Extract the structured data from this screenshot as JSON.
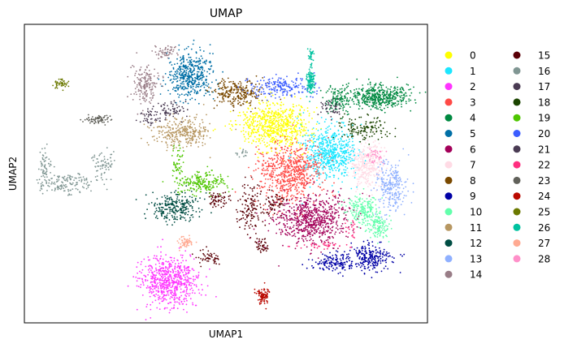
{
  "chart_data": {
    "type": "scatter",
    "title": "UMAP",
    "xlabel": "UMAP1",
    "ylabel": "UMAP2",
    "xticks": [],
    "yticks": [],
    "grid": false,
    "legend": {
      "placement": "right-outside",
      "columns": 2,
      "entries": [
        "0",
        "1",
        "2",
        "3",
        "4",
        "5",
        "6",
        "7",
        "8",
        "9",
        "10",
        "11",
        "12",
        "13",
        "14",
        "15",
        "16",
        "17",
        "18",
        "19",
        "20",
        "21",
        "22",
        "23",
        "24",
        "25",
        "26",
        "27",
        "28"
      ]
    },
    "xlim": [
      0,
      100
    ],
    "ylim": [
      0,
      100
    ],
    "series": [
      {
        "name": "0",
        "color": "#ffff00",
        "clusters": [
          {
            "x": 62,
            "y": 66,
            "sx": 4.5,
            "sy": 3.8,
            "n": 700
          }
        ]
      },
      {
        "name": "1",
        "color": "#1ce6ff",
        "clusters": [
          {
            "x": 76,
            "y": 57,
            "sx": 3.2,
            "sy": 4.5,
            "n": 600
          }
        ]
      },
      {
        "name": "2",
        "color": "#ff34ff",
        "clusters": [
          {
            "x": 36,
            "y": 14,
            "sx": 3.4,
            "sy": 4.3,
            "n": 650
          }
        ]
      },
      {
        "name": "3",
        "color": "#ff4a46",
        "clusters": [
          {
            "x": 66,
            "y": 50,
            "sx": 3.8,
            "sy": 4.6,
            "n": 650
          }
        ]
      },
      {
        "name": "4",
        "color": "#008941",
        "clusters": [
          {
            "x": 88,
            "y": 76,
            "sx": 3.5,
            "sy": 2.0,
            "n": 450
          },
          {
            "x": 78,
            "y": 75,
            "sx": 1.6,
            "sy": 2.2,
            "n": 120
          }
        ]
      },
      {
        "name": "5",
        "color": "#006fa6",
        "clusters": [
          {
            "x": 41,
            "y": 83,
            "sx": 2.8,
            "sy": 3.8,
            "n": 450
          }
        ]
      },
      {
        "name": "6",
        "color": "#a30059",
        "clusters": [
          {
            "x": 71,
            "y": 35,
            "sx": 4.8,
            "sy": 4.2,
            "n": 700
          }
        ]
      },
      {
        "name": "7",
        "color": "#ffdbe5",
        "clusters": [
          {
            "x": 85,
            "y": 53,
            "sx": 2.0,
            "sy": 3.6,
            "n": 300
          }
        ]
      },
      {
        "name": "8",
        "color": "#7a4900",
        "clusters": [
          {
            "x": 53,
            "y": 77,
            "sx": 3.2,
            "sy": 2.5,
            "n": 250
          }
        ]
      },
      {
        "name": "9",
        "color": "#0000a6",
        "clusters": [
          {
            "x": 86,
            "y": 22,
            "sx": 2.6,
            "sy": 2.5,
            "n": 230
          },
          {
            "x": 77,
            "y": 20,
            "sx": 3.0,
            "sy": 1.6,
            "n": 150
          }
        ]
      },
      {
        "name": "10",
        "color": "#63ffac",
        "clusters": [
          {
            "x": 84,
            "y": 38,
            "sx": 1.8,
            "sy": 2.5,
            "n": 200
          },
          {
            "x": 88,
            "y": 32,
            "sx": 1.4,
            "sy": 2.2,
            "n": 120
          }
        ]
      },
      {
        "name": "11",
        "color": "#b79762",
        "clusters": [
          {
            "x": 39,
            "y": 64,
            "sx": 3.6,
            "sy": 2.6,
            "n": 300
          }
        ]
      },
      {
        "name": "12",
        "color": "#004d43",
        "clusters": [
          {
            "x": 37,
            "y": 39,
            "sx": 3.0,
            "sy": 2.5,
            "n": 250
          }
        ]
      },
      {
        "name": "13",
        "color": "#8fb0ff",
        "clusters": [
          {
            "x": 91,
            "y": 46,
            "sx": 1.8,
            "sy": 4.0,
            "n": 250
          }
        ]
      },
      {
        "name": "14",
        "color": "#997d87",
        "clusters": [
          {
            "x": 30,
            "y": 80,
            "sx": 1.8,
            "sy": 3.4,
            "n": 170
          },
          {
            "x": 35,
            "y": 91,
            "sx": 1.5,
            "sy": 1.2,
            "n": 50
          }
        ]
      },
      {
        "name": "15",
        "color": "#5a0007",
        "clusters": [
          {
            "x": 48,
            "y": 41,
            "sx": 1.5,
            "sy": 1.5,
            "n": 60
          },
          {
            "x": 56,
            "y": 38,
            "sx": 1.6,
            "sy": 4.0,
            "n": 130
          },
          {
            "x": 62,
            "y": 40,
            "sx": 1.4,
            "sy": 2.0,
            "n": 60
          },
          {
            "x": 46,
            "y": 22,
            "sx": 1.5,
            "sy": 1.3,
            "n": 50
          },
          {
            "x": 59,
            "y": 26,
            "sx": 1.0,
            "sy": 1.2,
            "n": 40
          }
        ]
      },
      {
        "name": "16",
        "color": "#809693",
        "clusters": [
          {
            "x": 11,
            "y": 47,
            "sx": 3.5,
            "sy": 1.6,
            "n": 150
          },
          {
            "x": 20,
            "y": 53,
            "sx": 1.6,
            "sy": 2.2,
            "n": 60
          },
          {
            "x": 5,
            "y": 52,
            "sx": 0.8,
            "sy": 3.2,
            "n": 60
          },
          {
            "x": 54,
            "y": 57,
            "sx": 1.0,
            "sy": 0.7,
            "n": 15
          }
        ]
      },
      {
        "name": "17",
        "color": "#4a3b53",
        "clusters": [
          {
            "x": 36,
            "y": 71,
            "sx": 2.0,
            "sy": 1.5,
            "n": 70
          },
          {
            "x": 31,
            "y": 70,
            "sx": 1.0,
            "sy": 1.2,
            "n": 20
          },
          {
            "x": 76,
            "y": 72,
            "sx": 1.5,
            "sy": 1.6,
            "n": 50
          }
        ]
      },
      {
        "name": "18",
        "color": "#1b4400",
        "clusters": [
          {
            "x": 84,
            "y": 65,
            "sx": 3.4,
            "sy": 2.0,
            "n": 130
          }
        ]
      },
      {
        "name": "19",
        "color": "#4fc601",
        "clusters": [
          {
            "x": 44,
            "y": 47,
            "sx": 3.0,
            "sy": 2.0,
            "n": 200
          },
          {
            "x": 38,
            "y": 53,
            "sx": 0.8,
            "sy": 2.5,
            "n": 50
          }
        ]
      },
      {
        "name": "20",
        "color": "#3b5dff",
        "clusters": [
          {
            "x": 64,
            "y": 79,
            "sx": 4.0,
            "sy": 1.8,
            "n": 200
          }
        ]
      },
      {
        "name": "21",
        "color": "#4a3b53",
        "clusters": [
          {
            "x": 31,
            "y": 68,
            "sx": 1.5,
            "sy": 1.0,
            "n": 20
          }
        ]
      },
      {
        "name": "22",
        "color": "#ff2f80",
        "clusters": [
          {
            "x": 74,
            "y": 26,
            "sx": 3.0,
            "sy": 0.6,
            "n": 40
          },
          {
            "x": 81,
            "y": 31,
            "sx": 0.8,
            "sy": 2.0,
            "n": 20
          }
        ]
      },
      {
        "name": "23",
        "color": "#61615a",
        "clusters": [
          {
            "x": 18,
            "y": 68,
            "sx": 1.8,
            "sy": 0.8,
            "n": 70
          }
        ]
      },
      {
        "name": "24",
        "color": "#ba0900",
        "clusters": [
          {
            "x": 59,
            "y": 9,
            "sx": 0.8,
            "sy": 1.4,
            "n": 90
          }
        ]
      },
      {
        "name": "25",
        "color": "#6b7900",
        "clusters": [
          {
            "x": 9,
            "y": 80,
            "sx": 0.9,
            "sy": 0.8,
            "n": 45
          }
        ]
      },
      {
        "name": "26",
        "color": "#00c2a0",
        "clusters": [
          {
            "x": 71,
            "y": 81,
            "sx": 0.5,
            "sy": 2.2,
            "n": 120
          },
          {
            "x": 71,
            "y": 90,
            "sx": 0.4,
            "sy": 1.2,
            "n": 30
          }
        ]
      },
      {
        "name": "27",
        "color": "#ffaa92",
        "clusters": [
          {
            "x": 40,
            "y": 27,
            "sx": 1.0,
            "sy": 0.9,
            "n": 60
          }
        ]
      },
      {
        "name": "28",
        "color": "#ff90c9",
        "clusters": [
          {
            "x": 87,
            "y": 56,
            "sx": 1.5,
            "sy": 1.5,
            "n": 40
          }
        ]
      }
    ]
  }
}
